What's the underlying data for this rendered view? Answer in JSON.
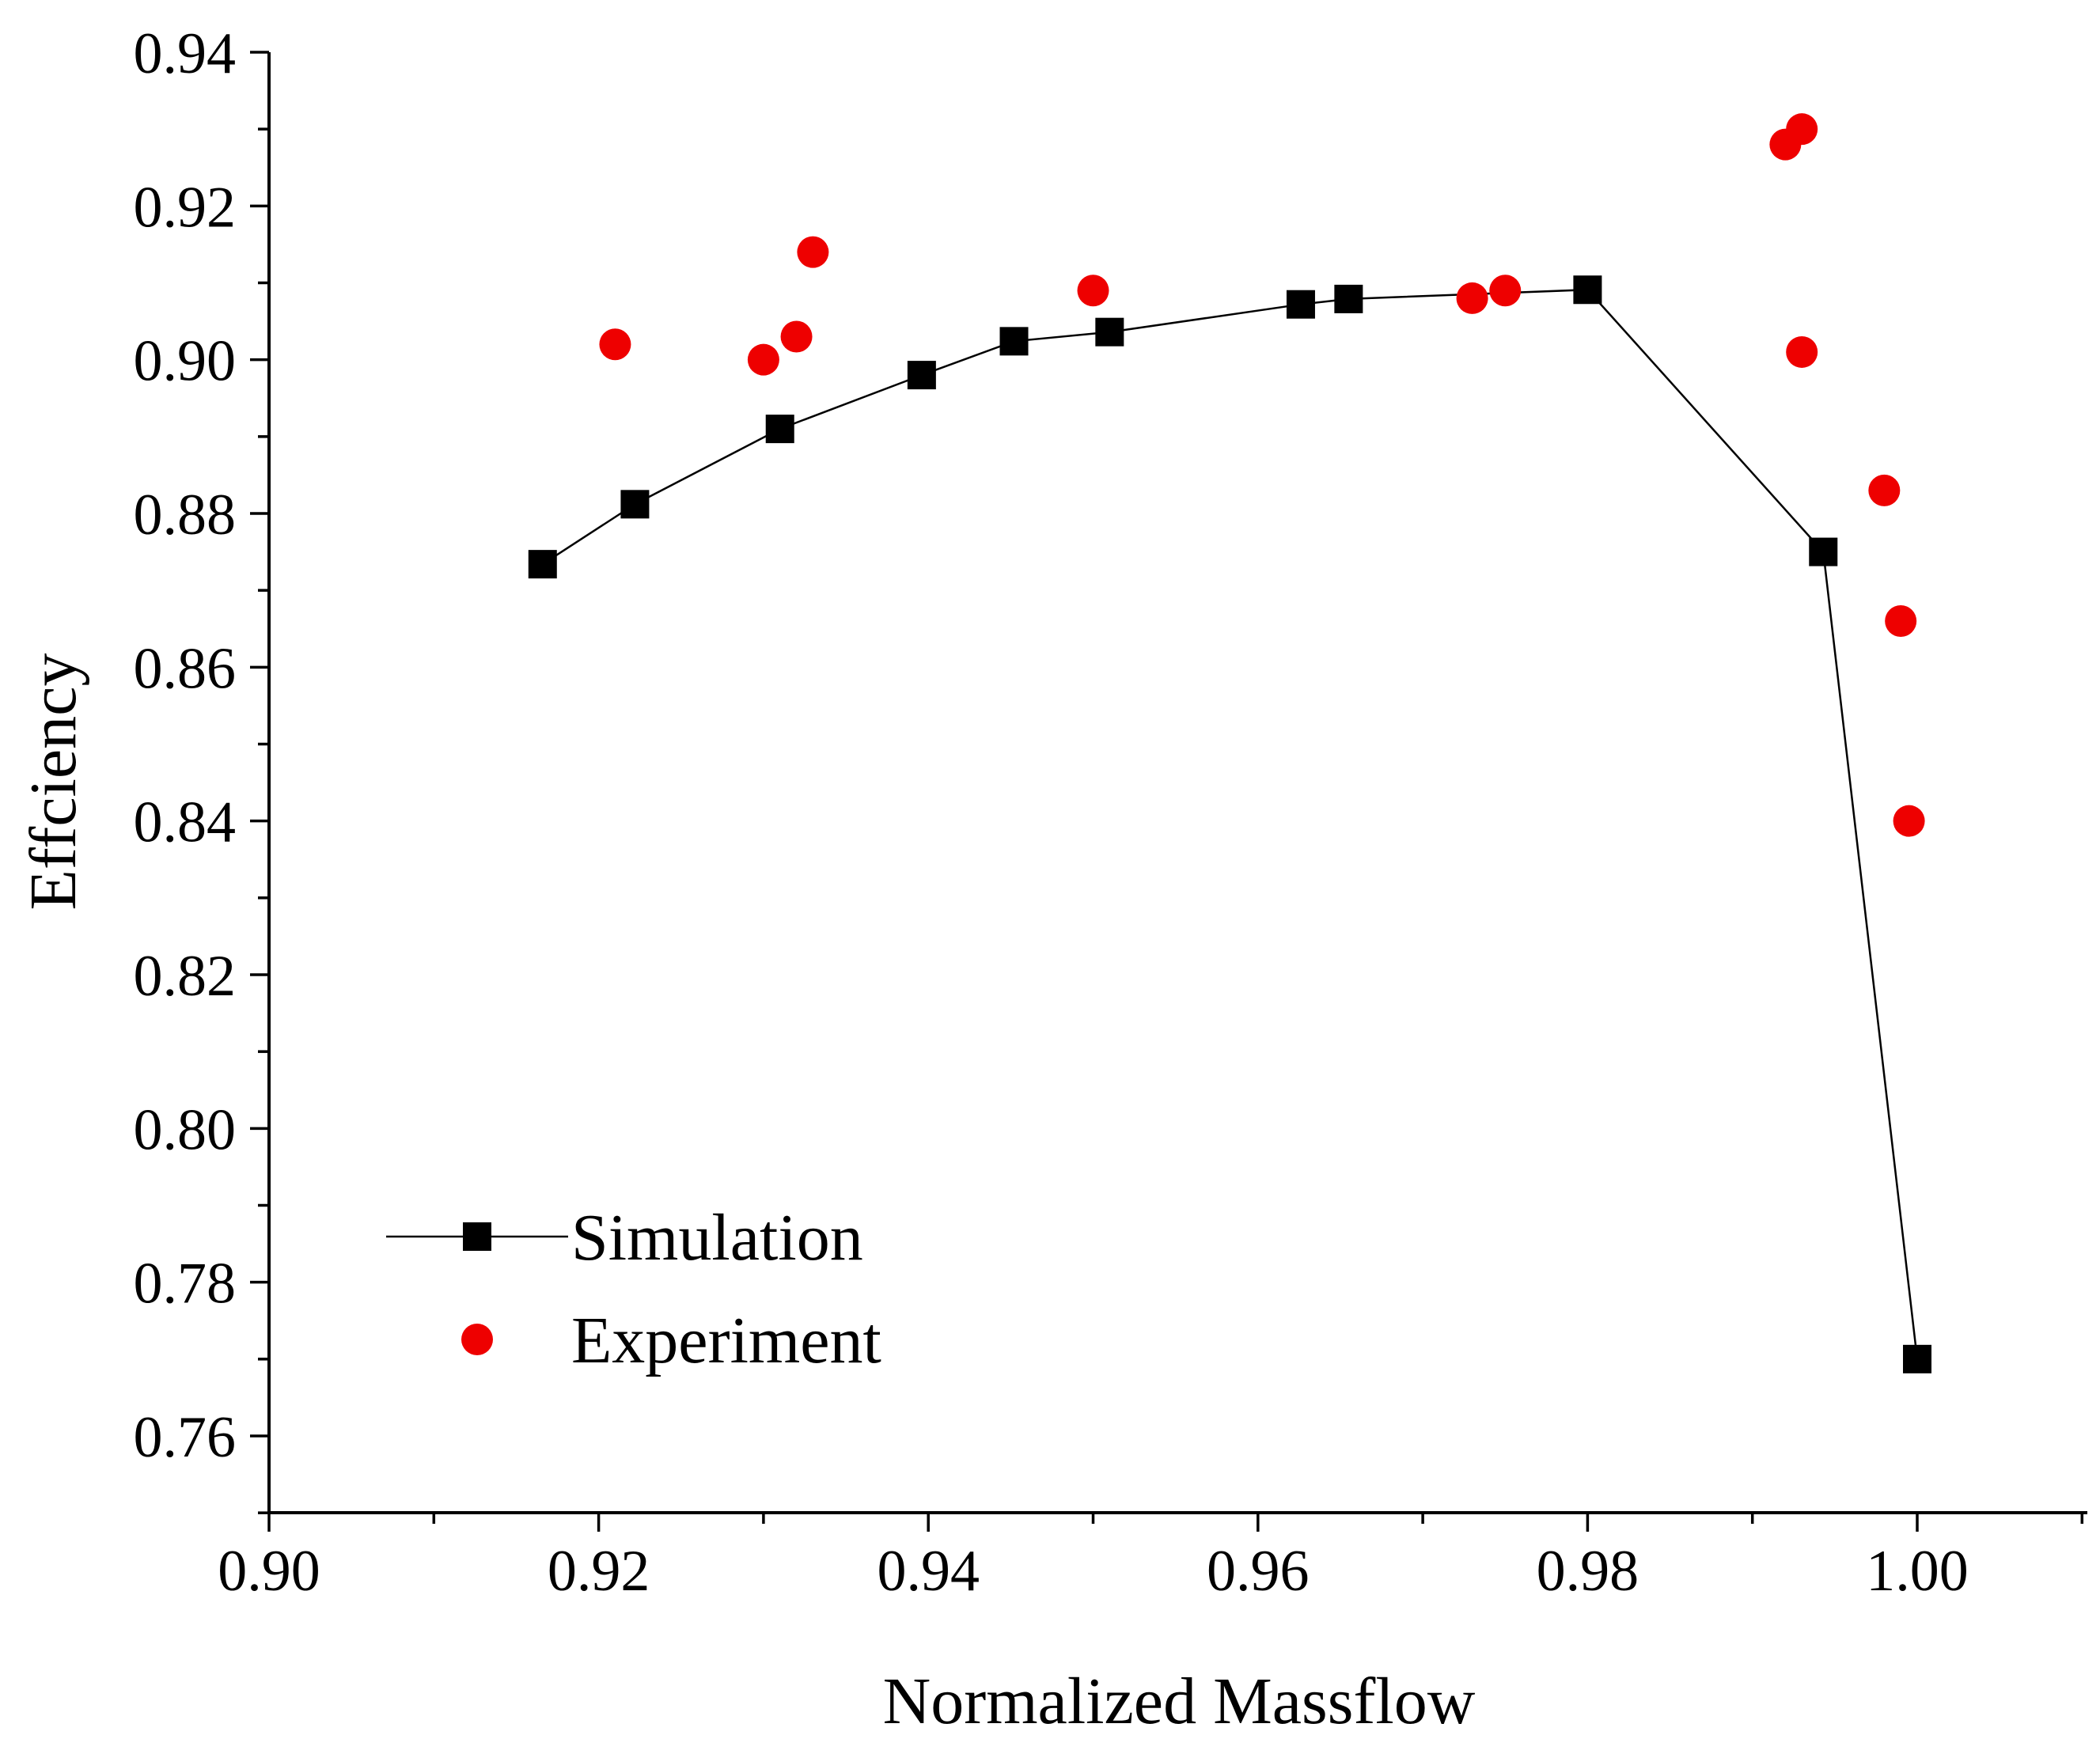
{
  "chart_data": {
    "type": "scatter",
    "title": "",
    "xlabel": "Normalized Massflow",
    "ylabel": "Effciency",
    "xlim": [
      0.9,
      1.01
    ],
    "ylim": [
      0.75,
      0.94
    ],
    "xticks": [
      0.9,
      0.92,
      0.94,
      0.96,
      0.98,
      1.0
    ],
    "xtick_labels": [
      "0.90",
      "0.92",
      "0.94",
      "0.96",
      "0.98",
      "1.00"
    ],
    "yticks": [
      0.76,
      0.78,
      0.8,
      0.82,
      0.84,
      0.86,
      0.88,
      0.9,
      0.92,
      0.94
    ],
    "ytick_labels": [
      "0.76",
      "0.78",
      "0.80",
      "0.82",
      "0.84",
      "0.86",
      "0.88",
      "0.90",
      "0.92",
      "0.94"
    ],
    "grid": false,
    "legend_position": "bottom-left",
    "series": [
      {
        "name": "Simulation",
        "style": "line-square",
        "color": "#000000",
        "points": [
          [
            0.9166,
            0.8734
          ],
          [
            0.9222,
            0.8812
          ],
          [
            0.931,
            0.891
          ],
          [
            0.9396,
            0.898
          ],
          [
            0.9452,
            0.9024
          ],
          [
            0.951,
            0.9036
          ],
          [
            0.9626,
            0.9072
          ],
          [
            0.9655,
            0.9079
          ],
          [
            0.98,
            0.9091
          ],
          [
            0.9943,
            0.875
          ],
          [
            1.0,
            0.77
          ]
        ]
      },
      {
        "name": "Experiment",
        "style": "circle",
        "color": "#ee0000",
        "points": [
          [
            0.921,
            0.902
          ],
          [
            0.93,
            0.9
          ],
          [
            0.932,
            0.903
          ],
          [
            0.933,
            0.914
          ],
          [
            0.95,
            0.909
          ],
          [
            0.973,
            0.908
          ],
          [
            0.975,
            0.909
          ],
          [
            0.992,
            0.928
          ],
          [
            0.993,
            0.93
          ],
          [
            0.993,
            0.901
          ],
          [
            0.998,
            0.883
          ],
          [
            0.999,
            0.866
          ],
          [
            0.9995,
            0.84
          ]
        ]
      }
    ]
  }
}
